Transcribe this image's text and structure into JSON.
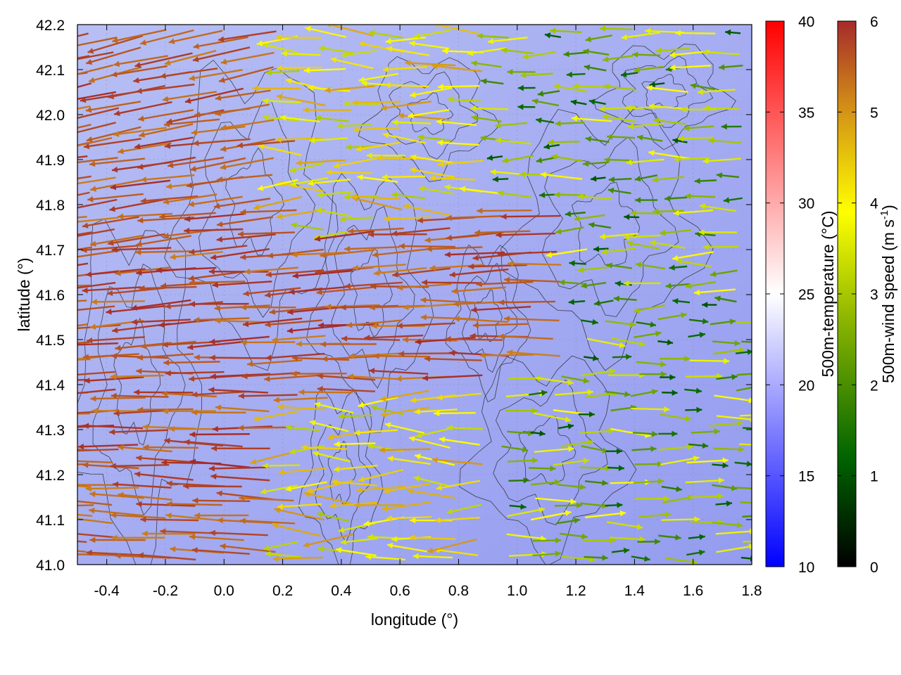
{
  "chart_data": {
    "type": "vector-field",
    "xlabel": "longitude (°)",
    "ylabel": "latitude (°)",
    "xlim": [
      -0.5,
      1.8
    ],
    "ylim": [
      41.0,
      42.2
    ],
    "x_ticks": [
      "-0.4",
      "-0.2",
      "0.0",
      "0.2",
      "0.4",
      "0.6",
      "0.8",
      "1.0",
      "1.2",
      "1.4",
      "1.6",
      "1.8"
    ],
    "x_tick_values": [
      -0.4,
      -0.2,
      0.0,
      0.2,
      0.4,
      0.6,
      0.8,
      1.0,
      1.2,
      1.4,
      1.6,
      1.8
    ],
    "y_ticks": [
      "41.0",
      "41.1",
      "41.2",
      "41.3",
      "41.4",
      "41.5",
      "41.6",
      "41.7",
      "41.8",
      "41.9",
      "42.0",
      "42.1",
      "42.2"
    ],
    "y_tick_values": [
      41.0,
      41.1,
      41.2,
      41.3,
      41.4,
      41.5,
      41.6,
      41.7,
      41.8,
      41.9,
      42.0,
      42.1,
      42.2
    ],
    "background_field": {
      "label": "500m-temperature (°C)",
      "range": [
        10,
        40
      ],
      "ticks": [
        "10",
        "15",
        "20",
        "25",
        "30",
        "35",
        "40"
      ],
      "tick_values": [
        10,
        15,
        20,
        25,
        30,
        35,
        40
      ],
      "colors": [
        "#0000ff",
        "#ffffff",
        "#ff0000"
      ],
      "approx_value": 18
    },
    "vector_field": {
      "label": "500m-wind speed (m s-1)",
      "label_base": "500m-wind speed (m s",
      "label_sup": "-1",
      "label_end": ")",
      "range": [
        0,
        6
      ],
      "ticks": [
        "0",
        "1",
        "2",
        "3",
        "4",
        "5",
        "6"
      ],
      "tick_values": [
        0,
        1,
        2,
        3,
        4,
        5,
        6
      ],
      "colors": [
        "#000000",
        "#006400",
        "#8ab400",
        "#ffff00",
        "#d08a18",
        "#a52a2a"
      ],
      "pattern": "westward flow (strong, 5-6 m/s) over western and central band; weak eastward flow (1-4 m/s) over eastern sector"
    },
    "grid": true,
    "contours": true
  }
}
